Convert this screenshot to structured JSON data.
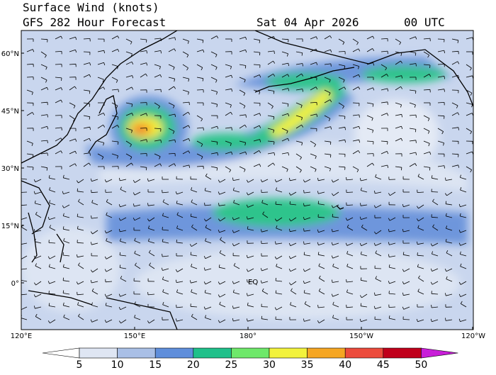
{
  "header": {
    "title": "Surface Wind (knots)",
    "subtitle": "GFS 282 Hour Forecast",
    "date": "Sat 04 Apr 2026",
    "time": "00 UTC"
  },
  "map": {
    "lat_labels": [
      "60°N",
      "45°N",
      "30°N",
      "15°N",
      "0°"
    ],
    "lon_labels": [
      "120°E",
      "150°E",
      "180°",
      "150°W",
      "120°W"
    ],
    "equator_label": "EQ"
  },
  "colorbar": {
    "levels": [
      5,
      10,
      15,
      20,
      25,
      30,
      35,
      40,
      45,
      50
    ],
    "under_color": "#ffffff",
    "colors": [
      "#dfe6f3",
      "#a9bfe6",
      "#5f8edb",
      "#20c08a",
      "#6ee86a",
      "#f2f23c",
      "#f5a623",
      "#ec4b3c",
      "#c0001b"
    ],
    "over_color": "#c81ed8"
  }
}
